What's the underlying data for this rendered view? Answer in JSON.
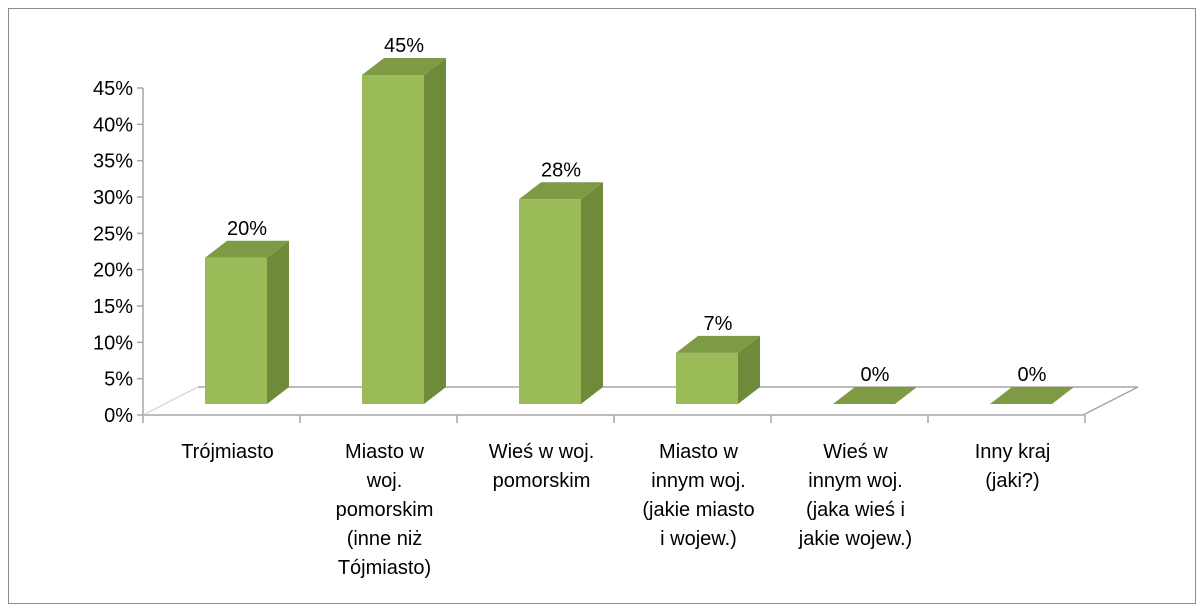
{
  "chart_data": {
    "type": "bar",
    "categories": [
      [
        "Trójmiasto"
      ],
      [
        "Miasto w",
        "woj.",
        "pomorskim",
        "(inne niż",
        "Tójmiasto)"
      ],
      [
        "Wieś w woj.",
        "pomorskim"
      ],
      [
        "Miasto w",
        "innym woj.",
        "(jakie miasto",
        "i wojew.)"
      ],
      [
        "Wieś w",
        "innym woj.",
        "(jaka wieś i",
        "jakie  wojew.)"
      ],
      [
        "Inny kraj",
        "(jaki?)"
      ]
    ],
    "values": [
      20,
      45,
      28,
      7,
      0,
      0
    ],
    "data_labels": [
      "20%",
      "45%",
      "28%",
      "7%",
      "0%",
      "0%"
    ],
    "yticks": [
      "0%",
      "5%",
      "10%",
      "15%",
      "20%",
      "25%",
      "30%",
      "35%",
      "40%",
      "45%"
    ],
    "ylim": [
      0,
      45
    ],
    "grid": false,
    "three_d": true,
    "colors": {
      "front": "#9bbb59",
      "side": "#6f8a3a",
      "top": "#7f9a45",
      "axis": "#a6a6a6"
    }
  }
}
